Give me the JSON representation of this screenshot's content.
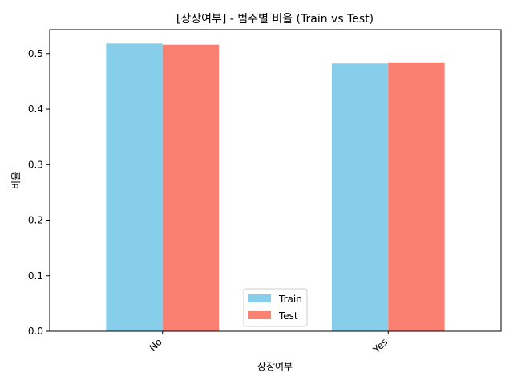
{
  "chart_data": {
    "type": "bar",
    "title": "[상장여부] - 범주별 비율 (Train vs Test)",
    "xlabel": "상장여부",
    "ylabel": "비율",
    "categories": [
      "No",
      "Yes"
    ],
    "series": [
      {
        "name": "Train",
        "values": [
          0.518,
          0.482
        ],
        "color": "#87CEEB"
      },
      {
        "name": "Test",
        "values": [
          0.516,
          0.484
        ],
        "color": "#FA8072"
      }
    ],
    "ylim": [
      0,
      0.543
    ],
    "yticks": [
      0.0,
      0.1,
      0.2,
      0.3,
      0.4,
      0.5
    ],
    "ytick_labels": [
      "0.0",
      "0.1",
      "0.2",
      "0.3",
      "0.4",
      "0.5"
    ],
    "grid": false,
    "legend_position": "bottom-center"
  }
}
